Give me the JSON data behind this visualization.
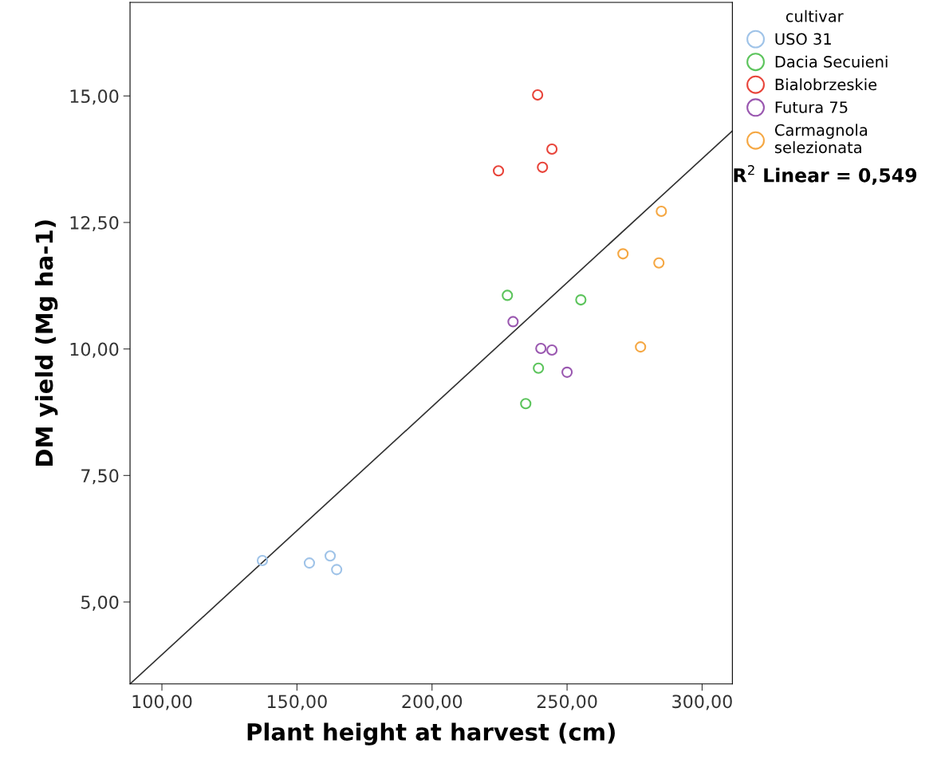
{
  "chart_data": {
    "type": "scatter",
    "xlabel": "Plant height at harvest (cm)",
    "ylabel": "DM yield (Mg ha-1)",
    "legend_title": "cultivar",
    "legend": "right",
    "grid": false,
    "xlim": [
      88.2,
      311.2
    ],
    "ylim": [
      3.38,
      16.85
    ],
    "xticks": [
      {
        "value": 100,
        "label": "100,00"
      },
      {
        "value": 150,
        "label": "150,00"
      },
      {
        "value": 200,
        "label": "200,00"
      },
      {
        "value": 250,
        "label": "250,00"
      },
      {
        "value": 300,
        "label": "300,00"
      }
    ],
    "yticks": [
      {
        "value": 5,
        "label": "5,00"
      },
      {
        "value": 7.5,
        "label": "7,50"
      },
      {
        "value": 10,
        "label": "10,00"
      },
      {
        "value": 12.5,
        "label": "12,50"
      },
      {
        "value": 15,
        "label": "15,00"
      }
    ],
    "series": [
      {
        "name": "USO 31",
        "marker": "circle",
        "color": "#9fc3e8",
        "x": [
          137.2,
          154.6,
          162.3,
          164.7
        ],
        "values": [
          5.82,
          5.77,
          5.91,
          5.64
        ]
      },
      {
        "name": "Dacia Secuieni",
        "marker": "circle",
        "color": "#5cc45c",
        "x": [
          227.9,
          255.1,
          239.4,
          234.7
        ],
        "values": [
          11.06,
          10.97,
          9.62,
          8.92
        ]
      },
      {
        "name": "Bialobrzeskie",
        "marker": "circle",
        "color": "#e8443a",
        "x": [
          239.1,
          224.6,
          240.9,
          244.4
        ],
        "values": [
          15.02,
          13.52,
          13.59,
          13.95
        ]
      },
      {
        "name": "Futura 75",
        "marker": "circle",
        "color": "#9a58b0",
        "x": [
          230.0,
          240.3,
          244.4,
          250.0
        ],
        "values": [
          10.54,
          10.01,
          9.98,
          9.54
        ]
      },
      {
        "name": "Carmagnola\nselezionata",
        "marker": "circle",
        "color": "#f5a742",
        "x": [
          284.9,
          270.7,
          284.0,
          277.2
        ],
        "values": [
          12.72,
          11.88,
          11.7,
          10.04
        ]
      },
      {
        "type": "line",
        "marker": "none",
        "color": "#333333",
        "x": [
          88.2,
          311.2
        ],
        "values": [
          3.38,
          14.31
        ]
      }
    ],
    "annotations": [
      "R$^{2}$ Linear = 0,549"
    ]
  }
}
